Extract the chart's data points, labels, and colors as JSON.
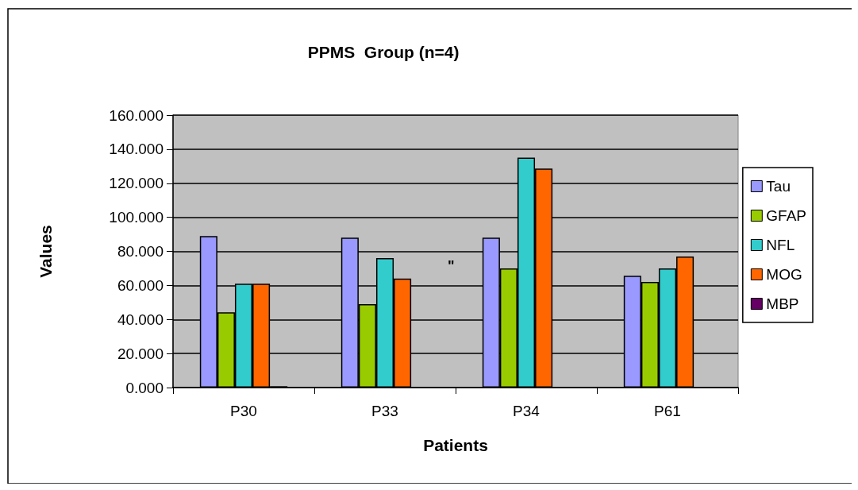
{
  "chart_data": {
    "type": "bar",
    "title": "PPMS  Group (n=4)",
    "xlabel": "Patients",
    "ylabel": "Values",
    "categories": [
      "P30",
      "P33",
      "P34",
      "P61"
    ],
    "series": [
      {
        "name": "Tau",
        "color": "#9999ff",
        "values": [
          89,
          88,
          88,
          65.6
        ]
      },
      {
        "name": "GFAP",
        "color": "#99cc00",
        "values": [
          44.2,
          49,
          70,
          62
        ]
      },
      {
        "name": "NFL",
        "color": "#33cccc",
        "values": [
          61,
          76,
          135,
          70
        ]
      },
      {
        "name": "MOG",
        "color": "#ff6600",
        "values": [
          61,
          64,
          128.6,
          77
        ]
      },
      {
        "name": "MBP",
        "color": "#660066",
        "values": [
          0.8,
          null,
          null,
          null
        ]
      }
    ],
    "ylim": [
      0,
      160
    ],
    "yticks": [
      {
        "value": 0,
        "label": "0.000"
      },
      {
        "value": 20,
        "label": "20.000"
      },
      {
        "value": 40,
        "label": "40.000"
      },
      {
        "value": 60,
        "label": "60.000"
      },
      {
        "value": 80,
        "label": "80.000"
      },
      {
        "value": 100,
        "label": "100.000"
      },
      {
        "value": 120,
        "label": "120.000"
      },
      {
        "value": 140,
        "label": "140.000"
      },
      {
        "value": 160,
        "label": "160.000"
      }
    ],
    "grid": "y",
    "legend": "right",
    "annotations": [
      "\""
    ]
  }
}
